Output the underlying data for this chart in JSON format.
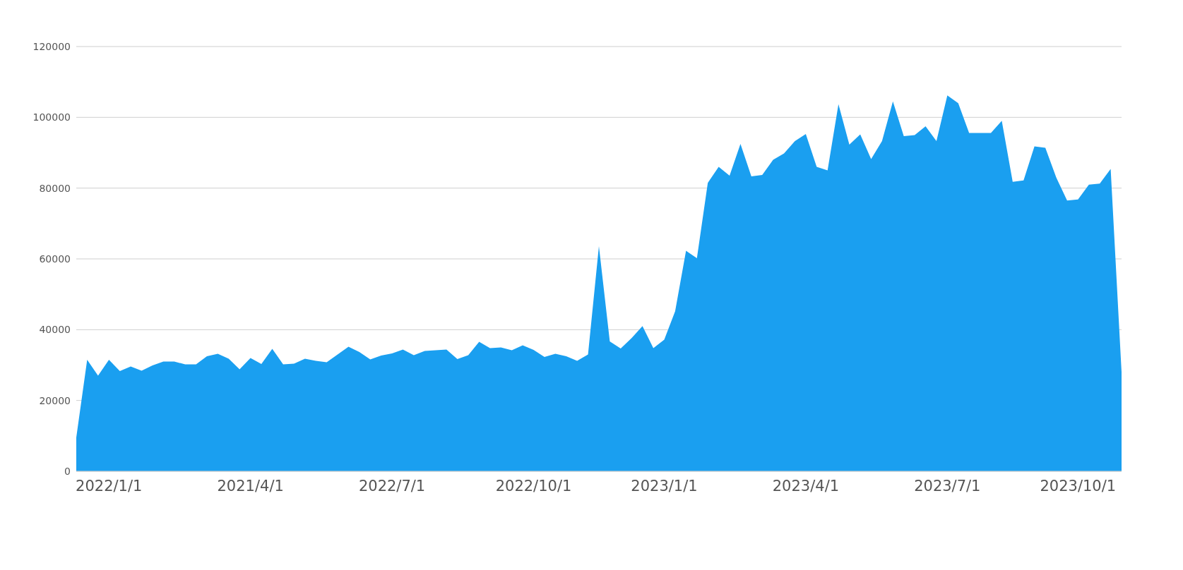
{
  "chart_data": {
    "type": "area",
    "categories": [
      null,
      null,
      null,
      "2022/1/1",
      null,
      null,
      null,
      null,
      null,
      null,
      null,
      null,
      null,
      null,
      null,
      null,
      "2021/4/1",
      null,
      null,
      null,
      null,
      null,
      null,
      null,
      null,
      null,
      null,
      null,
      null,
      "2022/7/1",
      null,
      null,
      null,
      null,
      null,
      null,
      null,
      null,
      null,
      null,
      null,
      null,
      "2022/10/1",
      null,
      null,
      null,
      null,
      null,
      null,
      null,
      null,
      null,
      null,
      null,
      "2023/1/1",
      null,
      null,
      null,
      null,
      null,
      null,
      null,
      null,
      null,
      null,
      null,
      null,
      "2023/4/1",
      null,
      null,
      null,
      null,
      null,
      null,
      null,
      null,
      null,
      null,
      null,
      null,
      "2023/7/1",
      null,
      null,
      null,
      null,
      null,
      null,
      null,
      null,
      null,
      null,
      null,
      "2023/10/1",
      null,
      null,
      null,
      null
    ],
    "series": [
      {
        "color": "#1a9ff0",
        "values": [
          9500,
          31500,
          27000,
          31500,
          28300,
          29600,
          28400,
          29900,
          31000,
          31000,
          30200,
          30200,
          32500,
          33200,
          31800,
          28800,
          32000,
          30300,
          34600,
          30200,
          30400,
          31800,
          31200,
          30800,
          33000,
          35200,
          33700,
          31600,
          32700,
          33300,
          34400,
          32800,
          34000,
          34200,
          34400,
          31700,
          32800,
          36600,
          34800,
          35000,
          34200,
          35600,
          34300,
          32300,
          33200,
          32500,
          31200,
          33000,
          63600,
          36700,
          34700,
          37600,
          41000,
          34800,
          37200,
          45200,
          62300,
          60200,
          81500,
          86000,
          83500,
          92500,
          83300,
          83700,
          88000,
          89800,
          93300,
          95300,
          86000,
          85000,
          103700,
          92300,
          95200,
          88200,
          93300,
          104500,
          94700,
          95000,
          97500,
          93300,
          106200,
          104000,
          95600,
          95600,
          95600,
          99000,
          81800,
          82200,
          91800,
          91400,
          83000,
          76500,
          76800,
          81000,
          81300,
          85400,
          28000
        ]
      }
    ],
    "ylim": [
      0,
      120000
    ],
    "yticks": [
      0,
      20000,
      40000,
      60000,
      80000,
      100000,
      120000
    ],
    "grid": "y"
  }
}
